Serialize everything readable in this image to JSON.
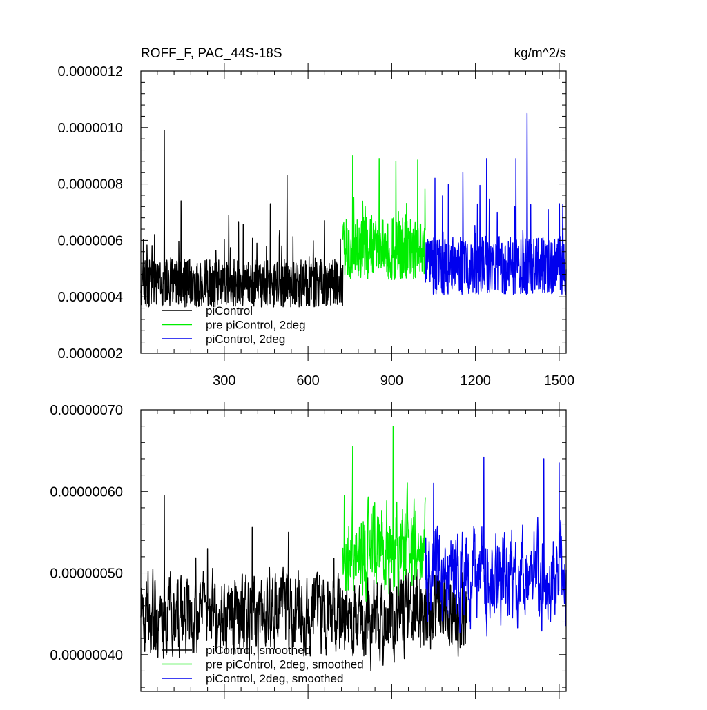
{
  "chart_data": [
    {
      "type": "line",
      "title": "ROFF_F, PAC_44S-18S",
      "units": "kg/m^2/s",
      "xlim": [
        1,
        1525
      ],
      "ylim": [
        2e-07,
        1.2e-06
      ],
      "xticks": [
        300,
        600,
        900,
        1200,
        1500
      ],
      "xtick_labels": [
        "300",
        "600",
        "900",
        "1200",
        "1500"
      ],
      "yticks": [
        2e-07,
        4e-07,
        6e-07,
        8e-07,
        1e-06,
        1.2e-06
      ],
      "ytick_labels": [
        "0.0000002",
        "0.0000004",
        "0.0000006",
        "0.0000008",
        "0.0000010",
        "0.0000012"
      ],
      "grid": false,
      "legend_position": "bottom-left",
      "series": [
        {
          "name": "piControl",
          "color": "#000000",
          "x_range": [
            1,
            725
          ],
          "baseline": 4.4e-07,
          "amplitude": 1.3e-07,
          "peaks": [
            [
              85,
              9.9e-07
            ],
            [
              525,
              8.3e-07
            ],
            [
              145,
              7.4e-07
            ],
            [
              465,
              7.3e-07
            ]
          ]
        },
        {
          "name": "pre piControl, 2deg",
          "color": "#00ee00",
          "x_range": [
            725,
            1020
          ],
          "baseline": 5.6e-07,
          "amplitude": 1.7e-07,
          "peaks": [
            [
              760,
              9e-07
            ],
            [
              855,
              8.9e-07
            ],
            [
              915,
              8.8e-07
            ]
          ]
        },
        {
          "name": "piControl, 2deg",
          "color": "#0000ee",
          "x_range": [
            1020,
            1525
          ],
          "baseline": 5e-07,
          "amplitude": 1.6e-07,
          "peaks": [
            [
              1385,
              1.05e-06
            ],
            [
              1240,
              8.9e-07
            ],
            [
              1345,
              8.9e-07
            ],
            [
              1155,
              8.4e-07
            ]
          ]
        }
      ]
    },
    {
      "type": "line",
      "xlim": [
        1,
        1525
      ],
      "ylim": [
        3.55e-07,
        7e-07
      ],
      "xticks": [
        300,
        600,
        900,
        1200,
        1500
      ],
      "yticks": [
        4e-07,
        5e-07,
        6e-07,
        7e-07
      ],
      "ytick_labels": [
        "0.00000040",
        "0.00000050",
        "0.00000060",
        "0.00000070"
      ],
      "grid": false,
      "legend_position": "bottom-left",
      "series": [
        {
          "name": "piControl, smoothed",
          "color": "#000000",
          "x_range": [
            1,
            1170
          ],
          "baseline": 4.5e-07,
          "amplitude": 5.5e-08,
          "peaks": [
            [
              85,
              5.95e-07
            ],
            [
              400,
              5.56e-07
            ],
            [
              530,
              5.5e-07
            ],
            [
              240,
              5.3e-07
            ]
          ]
        },
        {
          "name": "pre piControl, 2deg, smoothed",
          "color": "#00ee00",
          "x_range": [
            725,
            1020
          ],
          "baseline": 5.35e-07,
          "amplitude": 6e-08,
          "peaks": [
            [
              905,
              6.8e-07
            ],
            [
              760,
              6.55e-07
            ],
            [
              730,
              5.95e-07
            ]
          ]
        },
        {
          "name": "piControl, 2deg, smoothed",
          "color": "#0000ee",
          "x_range": [
            1020,
            1525
          ],
          "baseline": 4.95e-07,
          "amplitude": 6e-08,
          "peaks": [
            [
              1230,
              6.42e-07
            ],
            [
              1445,
              6.4e-07
            ],
            [
              1500,
              6.35e-07
            ],
            [
              1050,
              6.1e-07
            ]
          ]
        }
      ]
    }
  ]
}
